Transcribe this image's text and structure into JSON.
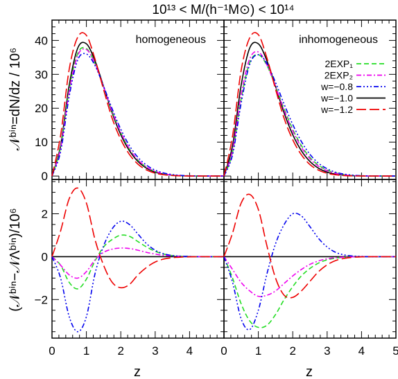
{
  "figure": {
    "title": "10¹³ < M/(h⁻¹M⊙) < 10¹⁴",
    "xlabel": "z",
    "ylabel_top": "𝒩ᵇⁱⁿ=dN/dz / 10⁶",
    "ylabel_bottom": "(𝒩ᵇⁱⁿ−𝒩Λᵇⁱⁿ)/10⁶"
  },
  "legend": [
    {
      "label": "2EXP₁",
      "color": "#22dd22",
      "dash": "7,4"
    },
    {
      "label": "2EXP₂",
      "color": "#ee00ee",
      "dash": "7,3,2,3"
    },
    {
      "label": "w=−0.8",
      "color": "#0000ee",
      "dash": "7,3,2,3,2,3,2,3"
    },
    {
      "label": "w=−1.0",
      "color": "#000000",
      "dash": ""
    },
    {
      "label": "w=−1.2",
      "color": "#ee0000",
      "dash": "14,5"
    }
  ],
  "chart_data": [
    {
      "type": "line",
      "panel_label": "homogeneous",
      "xlim": [
        0,
        5
      ],
      "ylim": [
        -1,
        46
      ],
      "yticks": [
        0,
        10,
        20,
        30,
        40
      ],
      "x": [
        0,
        0.25,
        0.5,
        0.75,
        1.0,
        1.25,
        1.5,
        1.75,
        2.0,
        2.25,
        2.5,
        2.75,
        3.0,
        3.25,
        3.5,
        3.75,
        4.0,
        4.25,
        4.5
      ],
      "series": [
        {
          "name": "2EXP₁",
          "values": [
            0,
            8.5,
            25.5,
            36.2,
            37.6,
            33.2,
            26.2,
            19.0,
            12.8,
            8.0,
            4.7,
            2.6,
            1.35,
            0.65,
            0.3,
            0.12,
            0.05,
            0.02,
            0
          ]
        },
        {
          "name": "2EXP₂",
          "values": [
            0,
            8.2,
            25.0,
            35.6,
            37.3,
            33.1,
            26.3,
            19.1,
            12.9,
            8.1,
            4.8,
            2.65,
            1.4,
            0.68,
            0.31,
            0.13,
            0.05,
            0.02,
            0
          ]
        },
        {
          "name": "w=−0.8",
          "values": [
            0,
            7.2,
            23.5,
            34.3,
            36.0,
            32.6,
            26.5,
            19.8,
            13.8,
            9.0,
            5.5,
            3.2,
            1.75,
            0.9,
            0.43,
            0.19,
            0.08,
            0.03,
            0
          ]
        },
        {
          "name": "w=−1.0",
          "values": [
            0,
            9.0,
            26.8,
            37.8,
            39.0,
            34.0,
            26.4,
            18.6,
            12.2,
            7.5,
            4.3,
            2.3,
            1.15,
            0.55,
            0.24,
            0.1,
            0.04,
            0.01,
            0
          ]
        },
        {
          "name": "w=−1.2",
          "values": [
            0,
            12.0,
            31.5,
            41.0,
            41.5,
            34.5,
            25.5,
            17.0,
            10.8,
            6.4,
            3.5,
            1.8,
            0.85,
            0.38,
            0.15,
            0.06,
            0.02,
            0.01,
            0
          ]
        }
      ]
    },
    {
      "type": "line",
      "panel_label": "inhomogeneous",
      "xlim": [
        0,
        5
      ],
      "ylim": [
        -1,
        46
      ],
      "yticks": [
        0,
        10,
        20,
        30,
        40
      ],
      "x": [
        0,
        0.25,
        0.5,
        0.75,
        1.0,
        1.25,
        1.5,
        1.75,
        2.0,
        2.25,
        2.5,
        2.75,
        3.0,
        3.25,
        3.5,
        3.75,
        4.0,
        4.25,
        4.5
      ],
      "series": [
        {
          "name": "2EXP₁",
          "values": [
            0,
            7.0,
            22.8,
            33.5,
            35.8,
            32.6,
            26.5,
            19.8,
            13.8,
            9.0,
            5.5,
            3.2,
            1.75,
            0.9,
            0.43,
            0.19,
            0.08,
            0.03,
            0
          ]
        },
        {
          "name": "2EXP₂",
          "values": [
            0,
            7.6,
            24.0,
            34.6,
            36.6,
            32.8,
            26.4,
            19.4,
            13.3,
            8.5,
            5.1,
            2.9,
            1.55,
            0.77,
            0.36,
            0.15,
            0.06,
            0.02,
            0
          ]
        },
        {
          "name": "w=−0.8",
          "values": [
            0,
            6.3,
            21.5,
            33.0,
            35.8,
            33.2,
            27.6,
            21.2,
            15.2,
            10.2,
            6.4,
            3.8,
            2.15,
            1.13,
            0.56,
            0.26,
            0.11,
            0.04,
            0
          ]
        },
        {
          "name": "w=−1.0",
          "values": [
            0,
            9.0,
            26.8,
            37.8,
            39.0,
            34.0,
            26.4,
            18.6,
            12.2,
            7.5,
            4.3,
            2.3,
            1.15,
            0.55,
            0.24,
            0.1,
            0.04,
            0.01,
            0
          ]
        },
        {
          "name": "w=−1.2",
          "values": [
            0,
            11.8,
            31.2,
            40.8,
            41.7,
            34.8,
            25.6,
            17.0,
            10.7,
            6.3,
            3.4,
            1.75,
            0.82,
            0.36,
            0.14,
            0.05,
            0.02,
            0.01,
            0
          ]
        }
      ]
    },
    {
      "type": "line",
      "xlim": [
        0,
        5
      ],
      "ylim": [
        -3.8,
        3.6
      ],
      "yticks": [
        -2,
        0,
        2
      ],
      "xticks": [
        0,
        1,
        2,
        3,
        4
      ],
      "x": [
        0,
        0.25,
        0.5,
        0.75,
        1.0,
        1.25,
        1.5,
        1.75,
        2.0,
        2.25,
        2.5,
        2.75,
        3.0,
        3.25,
        3.5,
        3.75,
        4.0,
        4.25,
        4.5
      ],
      "series": [
        {
          "name": "2EXP₁",
          "values": [
            0,
            -0.4,
            -1.2,
            -1.5,
            -1.05,
            -0.2,
            0.45,
            0.8,
            1.0,
            0.95,
            0.7,
            0.45,
            0.25,
            0.12,
            0.05,
            0.02,
            0.01,
            0,
            0
          ]
        },
        {
          "name": "2EXP₂",
          "values": [
            0,
            -0.4,
            -0.85,
            -1.0,
            -0.7,
            -0.15,
            0.2,
            0.35,
            0.4,
            0.38,
            0.3,
            0.2,
            0.12,
            0.06,
            0.03,
            0.01,
            0,
            0,
            0
          ]
        },
        {
          "name": "w=−0.8",
          "values": [
            0,
            -1.0,
            -2.8,
            -3.5,
            -2.8,
            -0.8,
            0.5,
            1.3,
            1.65,
            1.5,
            1.05,
            0.6,
            0.3,
            0.13,
            0.05,
            0.02,
            0.01,
            0,
            0
          ]
        },
        {
          "name": "w=−1.0",
          "values": [
            0,
            0,
            0,
            0,
            0,
            0,
            0,
            0,
            0,
            0,
            0,
            0,
            0,
            0,
            0,
            0,
            0,
            0,
            0
          ]
        },
        {
          "name": "w=−1.2",
          "values": [
            0,
            1.2,
            2.7,
            3.2,
            2.5,
            0.8,
            -0.4,
            -1.2,
            -1.45,
            -1.3,
            -0.85,
            -0.5,
            -0.25,
            -0.11,
            -0.05,
            -0.02,
            -0.01,
            0,
            0
          ]
        }
      ]
    },
    {
      "type": "line",
      "xlim": [
        0,
        5
      ],
      "ylim": [
        -3.8,
        3.6
      ],
      "yticks": [
        -2,
        0,
        2
      ],
      "xticks": [
        0,
        1,
        2,
        3,
        4,
        5
      ],
      "x": [
        0,
        0.25,
        0.5,
        0.75,
        1.0,
        1.25,
        1.5,
        1.75,
        2.0,
        2.25,
        2.5,
        2.75,
        3.0,
        3.25,
        3.5,
        3.75,
        4.0,
        4.25,
        4.5
      ],
      "series": [
        {
          "name": "2EXP₁",
          "values": [
            0,
            -1.0,
            -2.2,
            -3.0,
            -3.3,
            -3.2,
            -2.7,
            -2.0,
            -1.4,
            -0.9,
            -0.55,
            -0.3,
            -0.15,
            -0.07,
            -0.03,
            -0.01,
            0,
            0,
            0
          ]
        },
        {
          "name": "2EXP₂",
          "values": [
            0,
            -0.6,
            -1.2,
            -1.6,
            -1.85,
            -1.8,
            -1.6,
            -1.25,
            -0.9,
            -0.6,
            -0.36,
            -0.2,
            -0.1,
            -0.05,
            -0.02,
            -0.01,
            0,
            0,
            0
          ]
        },
        {
          "name": "w=−0.8",
          "values": [
            0,
            -1.2,
            -2.9,
            -3.4,
            -2.5,
            -0.8,
            0.6,
            1.5,
            2.0,
            1.9,
            1.4,
            0.85,
            0.45,
            0.2,
            0.08,
            0.03,
            0.01,
            0,
            0
          ]
        },
        {
          "name": "w=−1.0",
          "values": [
            0,
            0,
            0,
            0,
            0,
            0,
            0,
            0,
            0,
            0,
            0,
            0,
            0,
            0,
            0,
            0,
            0,
            0,
            0
          ]
        },
        {
          "name": "w=−1.2",
          "values": [
            0,
            1.1,
            2.5,
            2.9,
            2.2,
            0.5,
            -1.0,
            -1.8,
            -1.9,
            -1.6,
            -1.15,
            -0.7,
            -0.38,
            -0.18,
            -0.08,
            -0.03,
            -0.01,
            0,
            0
          ]
        }
      ]
    }
  ]
}
